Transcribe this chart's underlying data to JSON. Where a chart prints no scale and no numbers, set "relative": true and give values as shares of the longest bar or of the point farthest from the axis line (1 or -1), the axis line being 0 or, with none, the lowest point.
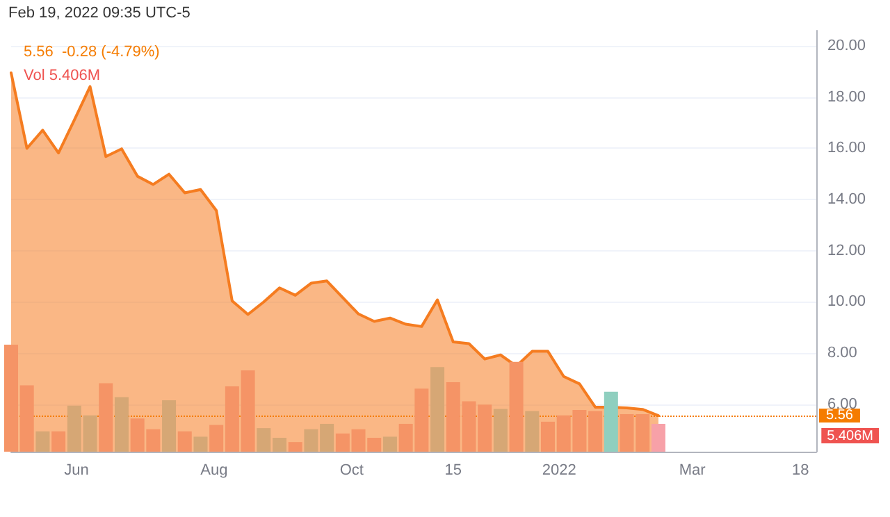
{
  "chart_data": [
    {
      "type": "area",
      "title": "5.56  -0.28 (-4.79%)",
      "annotations": [
        "Feb 19, 2022 09:35 UTC-5"
      ],
      "x": [
        "2021-05-03",
        "2021-05-10",
        "2021-05-17",
        "2021-05-24",
        "2021-05-31",
        "2021-06-07",
        "2021-06-14",
        "2021-06-21",
        "2021-06-28",
        "2021-07-05",
        "2021-07-12",
        "2021-07-19",
        "2021-07-26",
        "2021-08-02",
        "2021-08-09",
        "2021-08-16",
        "2021-08-23",
        "2021-08-30",
        "2021-09-06",
        "2021-09-13",
        "2021-09-20",
        "2021-09-27",
        "2021-10-04",
        "2021-10-11",
        "2021-10-18",
        "2021-10-25",
        "2021-11-01",
        "2021-11-08",
        "2021-11-15",
        "2021-11-22",
        "2021-11-29",
        "2021-12-06",
        "2021-12-13",
        "2021-12-20",
        "2021-12-27",
        "2022-01-03",
        "2022-01-10",
        "2022-01-17",
        "2022-01-24",
        "2022-01-31",
        "2022-02-07",
        "2022-02-14"
      ],
      "series": [
        {
          "color": "#f57c20",
          "values": [
            18.95,
            16.0,
            16.71,
            15.82,
            17.1,
            18.41,
            15.68,
            15.98,
            14.91,
            14.59,
            14.99,
            14.26,
            14.39,
            13.57,
            10.04,
            9.51,
            10.0,
            10.55,
            10.26,
            10.73,
            10.82,
            10.17,
            9.53,
            9.24,
            9.37,
            9.13,
            9.04,
            10.08,
            8.44,
            8.37,
            7.77,
            7.93,
            7.49,
            8.07,
            8.07,
            7.09,
            6.8,
            5.89,
            5.89,
            5.86,
            5.8,
            5.56
          ]
        }
      ],
      "xlim": [
        "2021-05-03",
        "2022-04-25"
      ],
      "xticks": [
        {
          "value": "2021-06-01",
          "label": "Jun"
        },
        {
          "value": "2021-08-01",
          "label": "Aug"
        },
        {
          "value": "2021-10-01",
          "label": "Oct"
        },
        {
          "value": "2021-11-15",
          "label": "15"
        },
        {
          "value": "2022-01-01",
          "label": "2022"
        },
        {
          "value": "2022-03-01",
          "label": "Mar"
        },
        {
          "value": "2022-04-18",
          "label": "18"
        }
      ],
      "ylim": [
        4.15,
        20.6
      ],
      "yticks": [
        {
          "value": 6,
          "label": "6.00"
        },
        {
          "value": 8,
          "label": "8.00"
        },
        {
          "value": 10,
          "label": "10.00"
        },
        {
          "value": 12,
          "label": "12.00"
        },
        {
          "value": 14,
          "label": "14.00"
        },
        {
          "value": 16,
          "label": "16.00"
        },
        {
          "value": 18,
          "label": "18.00"
        },
        {
          "value": 20,
          "label": "20.00"
        }
      ],
      "ref_lines": [
        {
          "axis": "y",
          "value": 5.56,
          "label": "5.56",
          "color": "#f57c00",
          "line_style": "dotted"
        }
      ],
      "grid": "y",
      "marker": "none"
    },
    {
      "type": "bar",
      "title": "Vol 5.406M",
      "relative": true,
      "tick_labels": false,
      "annotations": [
        "5.406M"
      ],
      "x": [
        "2021-05-03",
        "2021-05-10",
        "2021-05-17",
        "2021-05-24",
        "2021-05-31",
        "2021-06-07",
        "2021-06-14",
        "2021-06-21",
        "2021-06-28",
        "2021-07-05",
        "2021-07-12",
        "2021-07-19",
        "2021-07-26",
        "2021-08-02",
        "2021-08-09",
        "2021-08-16",
        "2021-08-23",
        "2021-08-30",
        "2021-09-06",
        "2021-09-13",
        "2021-09-20",
        "2021-09-27",
        "2021-10-04",
        "2021-10-11",
        "2021-10-18",
        "2021-10-25",
        "2021-11-01",
        "2021-11-08",
        "2021-11-15",
        "2021-11-22",
        "2021-11-29",
        "2021-12-06",
        "2021-12-13",
        "2021-12-20",
        "2021-12-27",
        "2022-01-03",
        "2022-01-10",
        "2022-01-17",
        "2022-01-24",
        "2022-01-31",
        "2022-02-07",
        "2022-02-14"
      ],
      "xlim": [
        "2021-05-03",
        "2022-04-25"
      ],
      "values": [
        1,
        0.62,
        0.19,
        0.19,
        0.43,
        0.34,
        0.64,
        0.51,
        0.31,
        0.21,
        0.48,
        0.19,
        0.14,
        0.25,
        0.61,
        0.76,
        0.22,
        0.13,
        0.09,
        0.21,
        0.26,
        0.17,
        0.21,
        0.13,
        0.14,
        0.26,
        0.59,
        0.79,
        0.65,
        0.47,
        0.44,
        0.4,
        0.84,
        0.38,
        0.28,
        0.34,
        0.39,
        0.38,
        0.56,
        0.35,
        0.35,
        0.26
      ],
      "colors": [
        "#f59466",
        "#f59466",
        "#d6a775",
        "#f59466",
        "#d6a775",
        "#d6a775",
        "#f59466",
        "#d6a775",
        "#f59466",
        "#f59466",
        "#d6a775",
        "#f59466",
        "#d6a775",
        "#f59466",
        "#f59466",
        "#f59466",
        "#d6a775",
        "#d6a775",
        "#f59466",
        "#d6a775",
        "#d6a775",
        "#f59466",
        "#f59466",
        "#f59466",
        "#d6a775",
        "#f59466",
        "#f59466",
        "#d6a775",
        "#f59466",
        "#f59466",
        "#f59466",
        "#d6a775",
        "#f59466",
        "#d6a775",
        "#f59466",
        "#f59466",
        "#f59466",
        "#f59466",
        "#8fcfbf",
        "#f59466",
        "#f59466",
        "#f7a1a8"
      ]
    }
  ]
}
